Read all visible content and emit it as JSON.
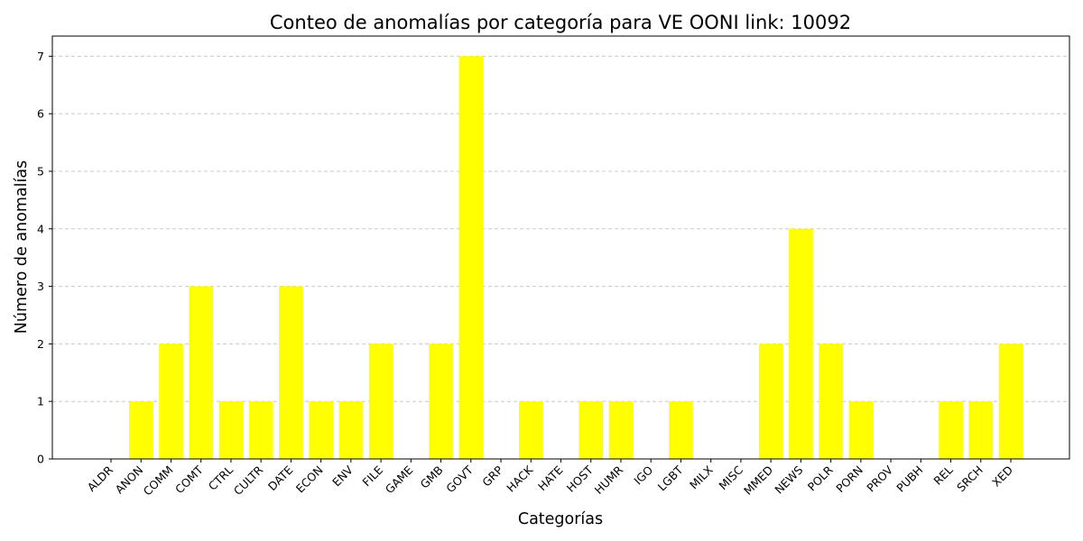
{
  "chart_data": {
    "type": "bar",
    "title": "Conteo de anomalías por categoría para VE OONI link: 10092",
    "xlabel": "Categorías",
    "ylabel": "Número de anomalías",
    "categories": [
      "ALDR",
      "ANON",
      "COMM",
      "COMT",
      "CTRL",
      "CULTR",
      "DATE",
      "ECON",
      "ENV",
      "FILE",
      "GAME",
      "GMB",
      "GOVT",
      "GRP",
      "HACK",
      "HATE",
      "HOST",
      "HUMR",
      "IGO",
      "LGBT",
      "MILX",
      "MISC",
      "MMED",
      "NEWS",
      "POLR",
      "PORN",
      "PROV",
      "PUBH",
      "REL",
      "SRCH",
      "XED"
    ],
    "values": [
      0,
      1,
      2,
      3,
      1,
      1,
      3,
      1,
      1,
      2,
      0,
      2,
      7,
      0,
      1,
      0,
      1,
      1,
      0,
      1,
      0,
      0,
      2,
      4,
      2,
      1,
      0,
      0,
      1,
      1,
      2
    ],
    "yticks": [
      0,
      1,
      2,
      3,
      4,
      5,
      6,
      7
    ],
    "ylim": [
      0,
      7.35
    ],
    "grid": "y-dashed",
    "legend": "none",
    "bar_color": "#ffff00",
    "grid_color": "#c8c8c8"
  }
}
